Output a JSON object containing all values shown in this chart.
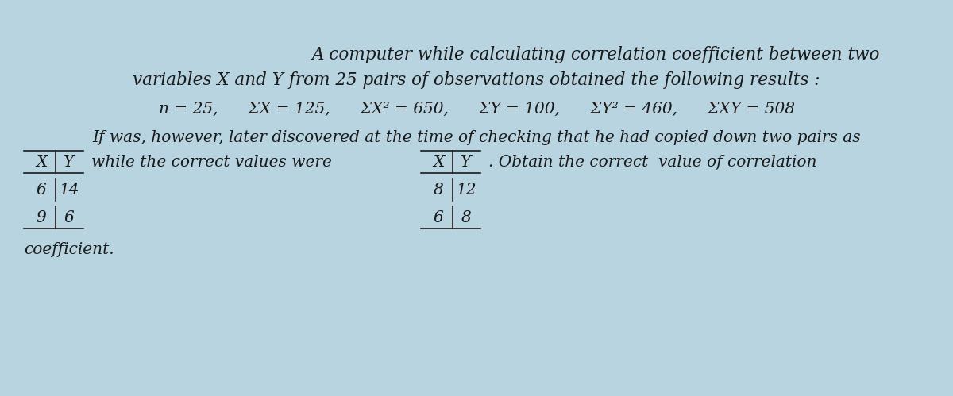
{
  "bg_color": "#b8d4e0",
  "title_line1": "A computer while calculating correlation coefficient between two",
  "title_line2": "variables X and Y from 25 pairs of observations obtained the following results :",
  "stats_line": "n = 25,      ΣX = 125,      ΣX² = 650,      ΣY = 100,      ΣY² = 460,      ΣXY = 508",
  "body_line": "If was, however, later discovered at the time of checking that he had copied down two pairs as",
  "wrong_header_x": "X",
  "wrong_header_y": "Y",
  "wrong_data": [
    [
      "6",
      "14"
    ],
    [
      "9",
      "6"
    ]
  ],
  "middle_text": "while the correct values were",
  "correct_header_x": "X",
  "correct_header_y": "Y",
  "correct_data": [
    [
      "8",
      "12"
    ],
    [
      "6",
      "8"
    ]
  ],
  "end_text": ". Obtain the correct  value of correlation",
  "last_line": "coefficient.",
  "font_size_title": 15.5,
  "font_size_body": 14.5,
  "font_size_stats": 14.5,
  "text_color": "#1a1a1a"
}
